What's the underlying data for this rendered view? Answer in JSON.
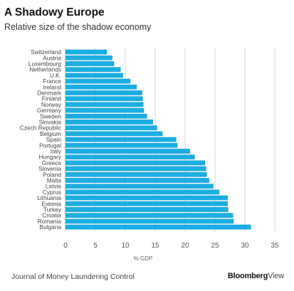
{
  "source": "Journal of Money Laundering Control",
  "brand": {
    "part1": "Bloomberg",
    "part2": "View"
  },
  "colors": {
    "bar": "#1aaee3",
    "bar_edge": "#0e8fc0",
    "grid": "#cfcfcf",
    "axis_text": "#555555"
  },
  "chart_data": {
    "type": "bar",
    "orientation": "horizontal",
    "title": "A Shadowy Europe",
    "subtitle": "Relative size of the shadow economy",
    "xlabel": "% GDP",
    "ylabel": "",
    "xlim": [
      0,
      35
    ],
    "xticks": [
      0,
      5,
      10,
      15,
      20,
      25,
      30,
      35
    ],
    "grid": "vertical",
    "legend": "none",
    "categories": [
      "Switzerland",
      "Austria",
      "Luxembourg",
      "Netherlands",
      "U.K.",
      "France",
      "Ireland",
      "Denmark",
      "Finland",
      "Norway",
      "Germany",
      "Sweden",
      "Slovakia",
      "Czech Republic",
      "Belgium",
      "Spain",
      "Portugal",
      "Italy",
      "Hungary",
      "Greece",
      "Slovenia",
      "Poland",
      "Malta",
      "Latvia",
      "Cyprus",
      "Lithuania",
      "Estonia",
      "Turkey",
      "Croatia",
      "Romania",
      "Bulgaria"
    ],
    "values": [
      6.9,
      7.8,
      8.1,
      9.2,
      9.6,
      10.8,
      11.9,
      12.8,
      12.9,
      13.0,
      13.1,
      13.6,
      14.6,
      15.3,
      16.2,
      18.5,
      18.7,
      20.8,
      21.6,
      23.3,
      23.5,
      23.6,
      24.0,
      24.7,
      25.7,
      27.1,
      27.1,
      27.2,
      28.0,
      28.1,
      31.0
    ]
  }
}
